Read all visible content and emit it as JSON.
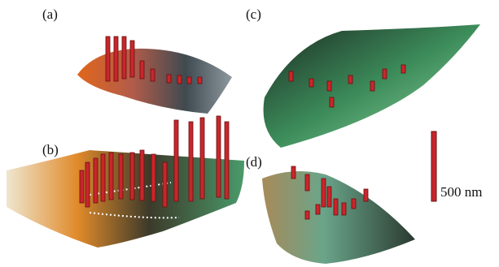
{
  "panels": [
    {
      "label": "(a)"
    },
    {
      "label": "(b)"
    },
    {
      "label": "(c)"
    },
    {
      "label": "(d)"
    }
  ],
  "scale_bar": {
    "label": "500 nm"
  }
}
